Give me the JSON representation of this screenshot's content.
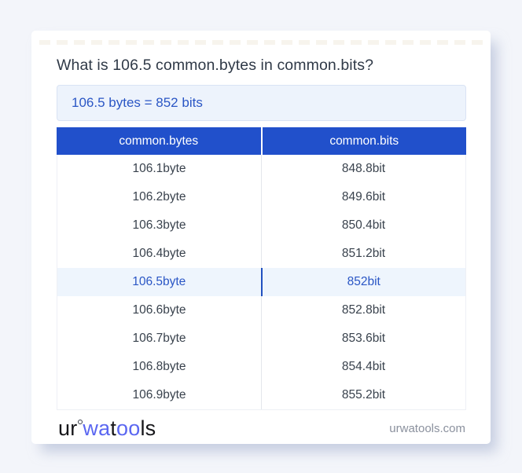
{
  "header": {
    "title": "What is 106.5 common.bytes in common.bits?"
  },
  "result": {
    "text": "106.5 bytes = 852 bits"
  },
  "table": {
    "columns": [
      {
        "label": "common.bytes"
      },
      {
        "label": "common.bits"
      }
    ],
    "rows": [
      {
        "bytes": "106.1byte",
        "bits": "848.8bit",
        "highlight": false
      },
      {
        "bytes": "106.2byte",
        "bits": "849.6bit",
        "highlight": false
      },
      {
        "bytes": "106.3byte",
        "bits": "850.4bit",
        "highlight": false
      },
      {
        "bytes": "106.4byte",
        "bits": "851.2bit",
        "highlight": false
      },
      {
        "bytes": "106.5byte",
        "bits": "852bit",
        "highlight": true
      },
      {
        "bytes": "106.6byte",
        "bits": "852.8bit",
        "highlight": false
      },
      {
        "bytes": "106.7byte",
        "bits": "853.6bit",
        "highlight": false
      },
      {
        "bytes": "106.8byte",
        "bits": "854.4bit",
        "highlight": false
      },
      {
        "bytes": "106.9byte",
        "bits": "855.2bit",
        "highlight": false
      }
    ]
  },
  "footer": {
    "logo_segments": [
      {
        "text": "ur",
        "color": "#16161a",
        "ring": false
      },
      {
        "text": "",
        "color": "#3a3f4a",
        "ring": true
      },
      {
        "text": "wa",
        "color": "#5b67f1",
        "ring": false
      },
      {
        "text": "t",
        "color": "#16161a",
        "ring": false
      },
      {
        "text": "oo",
        "color": "#5b67f1",
        "ring": false
      },
      {
        "text": "ls",
        "color": "#16161a",
        "ring": false
      }
    ],
    "site_label": "urwatools.com"
  },
  "colors": {
    "page_bg": "#f3f5fa",
    "card_bg": "#ffffff",
    "table_header_bg": "#2150cb",
    "table_header_text": "#ffffff",
    "banner_bg": "#edf3fc",
    "banner_border": "#d9e3f4",
    "accent_blue": "#2a56c5",
    "highlight_row_bg": "#eef5fd",
    "highlight_divider": "#2151c0",
    "row_text": "#39424d",
    "muted_text": "#8b919e",
    "logo_blue": "#5b67f1"
  }
}
